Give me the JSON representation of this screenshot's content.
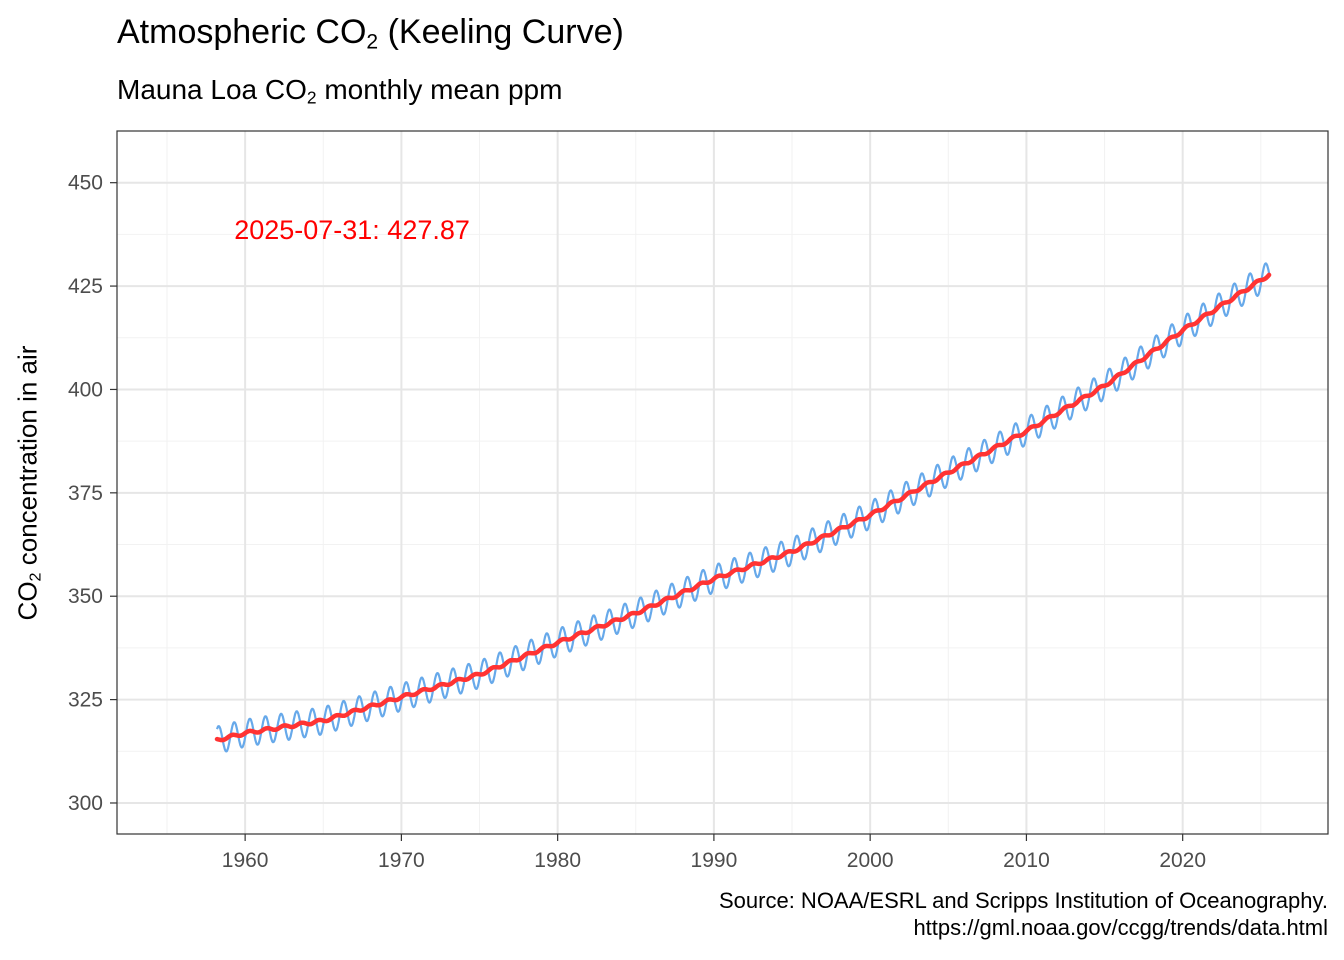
{
  "chart_data": {
    "type": "line",
    "title": {
      "prefix": "Atmospheric CO",
      "subscript": "2",
      "suffix": " (Keeling Curve)"
    },
    "subtitle": {
      "prefix": "Mauna Loa CO",
      "subscript": "2",
      "suffix": " monthly mean ppm"
    },
    "ylabel": {
      "prefix": "CO",
      "subscript": "2",
      "suffix": " concentration in air"
    },
    "xlabel": "",
    "caption": [
      "Source: NOAA/ESRL and Scripps Institution of Oceanography.",
      "https://gml.noaa.gov/ccgg/trends/data.html"
    ],
    "annotation": {
      "text": "2025-07-31: 427.87",
      "x": 1959.3,
      "y": 438.5,
      "color": "#ff0000"
    },
    "xlim": [
      1951.8,
      2029.3
    ],
    "ylim": [
      292.5,
      462.5
    ],
    "x_ticks": [
      1960,
      1970,
      1980,
      1990,
      2000,
      2010,
      2020
    ],
    "y_ticks": [
      300,
      325,
      350,
      375,
      400,
      425,
      450
    ],
    "x_range": [
      1958.2,
      2025.6
    ],
    "grid": true,
    "legend": "none",
    "series": [
      {
        "style": "monthly",
        "color": "#67a9ea",
        "seasonal_amplitude": 3.3,
        "trend_anchor_ppm": [
          [
            1958.2,
            315.2
          ],
          [
            1960,
            316.9
          ],
          [
            1965,
            319.9
          ],
          [
            1970,
            325.6
          ],
          [
            1975,
            331.1
          ],
          [
            1980,
            338.8
          ],
          [
            1985,
            345.9
          ],
          [
            1990,
            354.2
          ],
          [
            1995,
            360.8
          ],
          [
            2000,
            369.6
          ],
          [
            2005,
            379.9
          ],
          [
            2010,
            389.9
          ],
          [
            2015,
            400.9
          ],
          [
            2020,
            414.3
          ],
          [
            2025.6,
            427.9
          ]
        ]
      },
      {
        "style": "trend",
        "color": "#ff3333",
        "trend_anchor_ppm": [
          [
            1958.2,
            315.2
          ],
          [
            1960,
            316.9
          ],
          [
            1965,
            319.9
          ],
          [
            1970,
            325.6
          ],
          [
            1975,
            331.1
          ],
          [
            1980,
            338.8
          ],
          [
            1985,
            345.9
          ],
          [
            1990,
            354.2
          ],
          [
            1995,
            360.8
          ],
          [
            2000,
            369.6
          ],
          [
            2005,
            379.9
          ],
          [
            2010,
            389.9
          ],
          [
            2015,
            400.9
          ],
          [
            2020,
            414.3
          ],
          [
            2025.6,
            427.9
          ]
        ]
      }
    ]
  }
}
